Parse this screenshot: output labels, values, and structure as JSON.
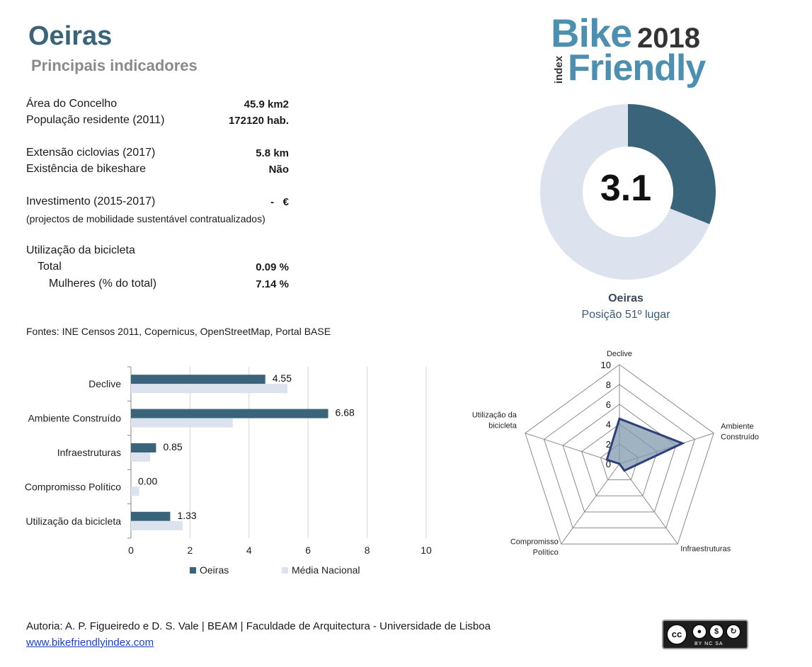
{
  "header": {
    "title": "Oeiras",
    "subtitle": "Principais indicadores"
  },
  "logo": {
    "bike": "Bike",
    "year": "2018",
    "index": "index",
    "friendly": "Friendly"
  },
  "indicators": [
    {
      "label": "Área do Concelho",
      "value": "45.9 km2"
    },
    {
      "label": "População residente (2011)",
      "value": "172120 hab."
    },
    {
      "label": "Extensão ciclovias (2017)",
      "value": "5.8 km"
    },
    {
      "label": "Existência de bikeshare",
      "value": "Não"
    },
    {
      "label": "Investimento (2015-2017)",
      "value": "-   €"
    },
    {
      "label": "(projectos de mobilidade sustentável contratualizados)"
    },
    {
      "label": "Utilização da bicicleta"
    },
    {
      "label": "Total",
      "value": "0.09 %"
    },
    {
      "label": "Mulheres (% do total)",
      "value": "7.14 %"
    }
  ],
  "sources": "Fontes: INE Censos 2011, Copernicus, OpenStreetMap,  Portal BASE",
  "footer": {
    "credits": "Autoria: A. P. Figueiredo e D. S. Vale | BEAM | Faculdade de Arquitectura - Universidade de Lisboa",
    "website": "www.bikefriendlyindex.com",
    "license": {
      "cc": "cc",
      "sub": "BY  NC  SA"
    }
  },
  "colors": {
    "primary": "#3a6479",
    "light": "#dce3ef",
    "radar_line": "#2f3f7a",
    "radar_fill": "#7f99ad"
  },
  "chart_data": [
    {
      "type": "pie",
      "title": "",
      "value": 3.1,
      "max": 10,
      "score_label": "3.1",
      "name": "Oeiras",
      "rank_label": "Posição 51º lugar"
    },
    {
      "type": "bar",
      "orientation": "horizontal",
      "categories": [
        "Declive",
        "Ambiente Construído",
        "Infraestruturas",
        "Compromisso Político",
        "Utilização da bicicleta"
      ],
      "series": [
        {
          "name": "Oeiras",
          "values": [
            4.55,
            6.68,
            0.85,
            0.0,
            1.33
          ],
          "labels": [
            "4.55",
            "6.68",
            "0.85",
            "0.00",
            "1.33"
          ]
        },
        {
          "name": "Média Nacional",
          "values": [
            5.3,
            3.45,
            0.65,
            0.28,
            1.75
          ]
        }
      ],
      "xlim": [
        0,
        10
      ],
      "xticks": [
        "0",
        "2",
        "4",
        "6",
        "8",
        "10"
      ],
      "grid": true,
      "legend": "bottom"
    },
    {
      "type": "radar",
      "axes": [
        "Declive",
        "Ambiente Construído",
        "Infraestruturas",
        "Compromisso Político",
        "Utilização da bicicleta"
      ],
      "axis_labels": [
        [
          "Declive"
        ],
        [
          "Ambiente",
          "Construído"
        ],
        [
          "Infraestruturas"
        ],
        [
          "Compromisso",
          "Político"
        ],
        [
          "Utilização da",
          "bicicleta"
        ]
      ],
      "values": [
        4.55,
        6.68,
        0.85,
        0.0,
        1.33
      ],
      "rlim": [
        0,
        10
      ],
      "rticks": [
        "0",
        "2",
        "4",
        "6",
        "8",
        "10"
      ]
    }
  ]
}
